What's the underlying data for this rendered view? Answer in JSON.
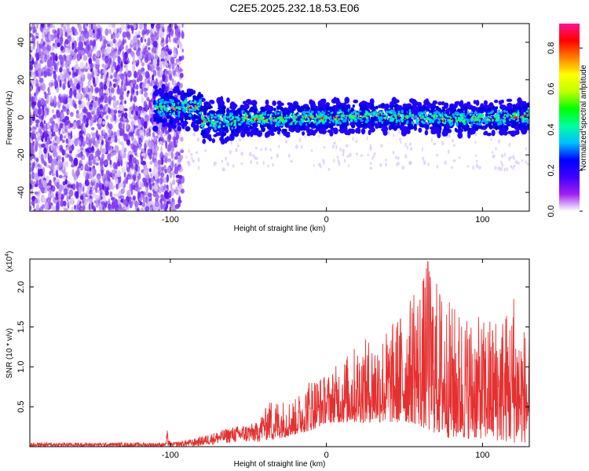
{
  "title": "C2E5.2025.232.18.53.E06",
  "chart_data": [
    {
      "type": "heatmap",
      "name": "spectrogram",
      "xlabel": "Height of straight line (km)",
      "ylabel": "Frequency (Hz)",
      "xlim": [
        -190,
        130
      ],
      "ylim": [
        -50,
        50
      ],
      "xticks": [
        -100,
        0,
        100
      ],
      "yticks": [
        -40,
        -20,
        0,
        20,
        40
      ],
      "colorbar": {
        "label": "Normalized spectral amplitude",
        "range": [
          0,
          0.92
        ],
        "ticks": [
          0.0,
          0.2,
          0.4,
          0.6,
          0.8
        ],
        "colors": [
          "#ffffff",
          "#a020f0",
          "#4000ff",
          "#0000ff",
          "#00c0ff",
          "#00ffa0",
          "#00ff00",
          "#c0ff00",
          "#ffff00",
          "#ff8000",
          "#ff0000",
          "#ff1493"
        ]
      },
      "features": {
        "noise_region_x": [
          -190,
          -92
        ],
        "signal_band_x": [
          -110,
          130
        ],
        "signal_center_freq_hz": 0
      }
    },
    {
      "type": "line",
      "name": "snr",
      "xlabel": "Height of straight line (km)",
      "ylabel": "SNR (10 * v/v)",
      "multiplier_label": "(x10",
      "multiplier_exponent": "4",
      "xlim": [
        -190,
        130
      ],
      "ylim": [
        0,
        2.35
      ],
      "xticks": [
        -100,
        0,
        100
      ],
      "yticks": [
        0.5,
        1.0,
        1.5,
        2.0
      ],
      "color": "#e53030",
      "envelope": [
        {
          "x": -190,
          "low": 0.0,
          "high": 0.05
        },
        {
          "x": -103,
          "low": 0.0,
          "high": 0.05
        },
        {
          "x": -102,
          "low": 0.0,
          "high": 0.2
        },
        {
          "x": -100,
          "low": 0.0,
          "high": 0.05
        },
        {
          "x": -85,
          "low": 0.0,
          "high": 0.1
        },
        {
          "x": -60,
          "low": 0.05,
          "high": 0.25
        },
        {
          "x": -45,
          "low": 0.05,
          "high": 0.3
        },
        {
          "x": -35,
          "low": 0.08,
          "high": 0.6
        },
        {
          "x": -20,
          "low": 0.15,
          "high": 0.6
        },
        {
          "x": -10,
          "low": 0.2,
          "high": 0.9
        },
        {
          "x": 0,
          "low": 0.3,
          "high": 0.9
        },
        {
          "x": 20,
          "low": 0.3,
          "high": 1.3
        },
        {
          "x": 40,
          "low": 0.3,
          "high": 1.5
        },
        {
          "x": 55,
          "low": 0.3,
          "high": 1.9
        },
        {
          "x": 65,
          "low": 0.2,
          "high": 2.3
        },
        {
          "x": 80,
          "low": 0.1,
          "high": 1.8
        },
        {
          "x": 100,
          "low": 0.1,
          "high": 1.6
        },
        {
          "x": 120,
          "low": 0.05,
          "high": 1.8
        },
        {
          "x": 130,
          "low": 0.05,
          "high": 1.4
        }
      ],
      "peaks": [
        {
          "x": -102,
          "y": 0.2
        },
        {
          "x": 56,
          "y": 1.9
        },
        {
          "x": 65,
          "y": 2.32
        },
        {
          "x": 120,
          "y": 1.85
        }
      ]
    }
  ]
}
